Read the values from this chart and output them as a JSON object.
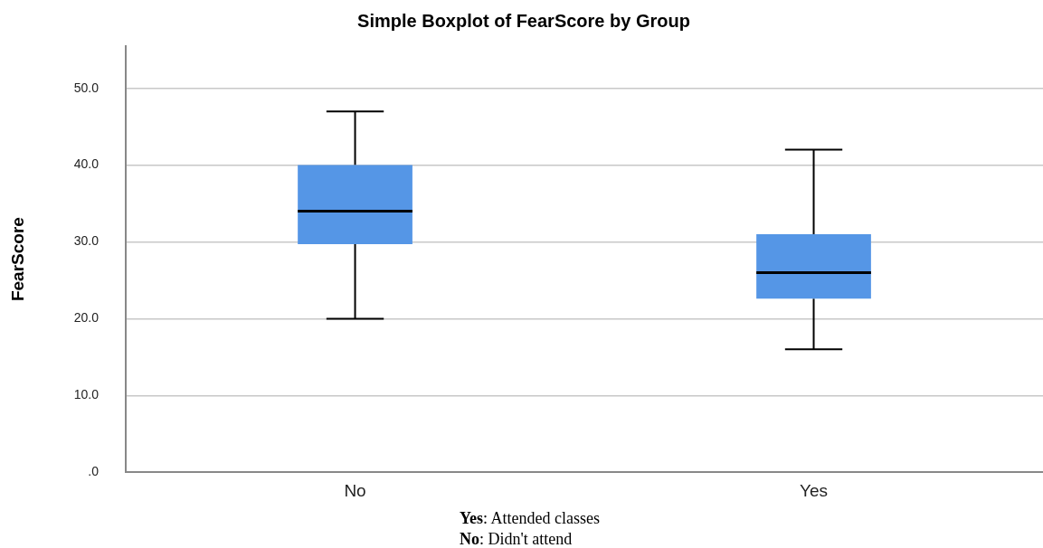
{
  "chart_data": {
    "type": "box",
    "title": "Simple Boxplot of FearScore by Group",
    "ylabel": "FearScore",
    "categories": [
      "No",
      "Yes"
    ],
    "boxes": [
      {
        "low": 20,
        "q1": 29.7,
        "median": 34,
        "q3": 40,
        "high": 47
      },
      {
        "low": 16,
        "q1": 22.6,
        "median": 26,
        "q3": 31,
        "high": 42
      }
    ],
    "color": "#5596e6",
    "ylim": [
      0,
      55.5
    ],
    "yticks": [
      {
        "value": 0,
        "label": ".0"
      },
      {
        "value": 10,
        "label": "10.0"
      },
      {
        "value": 20,
        "label": "20.0"
      },
      {
        "value": 30,
        "label": "30.0"
      },
      {
        "value": 40,
        "label": "40.0"
      },
      {
        "value": 50,
        "label": "50.0"
      }
    ],
    "grid": "y",
    "annotations": [
      "Yes: Attended classes",
      "No: Didn't attend"
    ]
  }
}
